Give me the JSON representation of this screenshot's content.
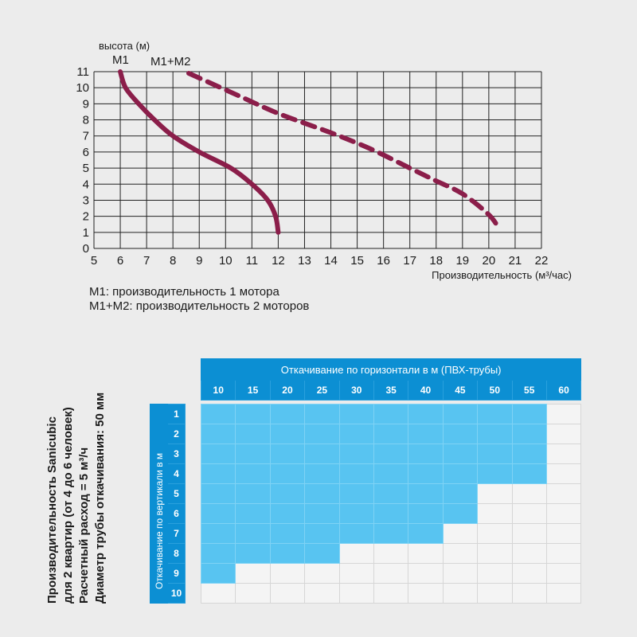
{
  "chart_data": {
    "type": "line",
    "ylabel": "высота (м)",
    "xlabel": "Производительность (м³/час)",
    "xlim": [
      5,
      22
    ],
    "ylim": [
      0,
      11
    ],
    "xticks": [
      "5",
      "6",
      "7",
      "8",
      "9",
      "10",
      "11",
      "12",
      "13",
      "14",
      "15",
      "16",
      "17",
      "18",
      "19",
      "20",
      "21",
      "22"
    ],
    "yticks": [
      "0",
      "1",
      "2",
      "3",
      "4",
      "5",
      "6",
      "7",
      "8",
      "9",
      "10",
      "11"
    ],
    "grid": true,
    "series": [
      {
        "name": "M1",
        "style": "solid",
        "color": "#8b1e4a",
        "points": [
          [
            6.0,
            11
          ],
          [
            6.2,
            10
          ],
          [
            6.7,
            9
          ],
          [
            7.3,
            8
          ],
          [
            8.0,
            7
          ],
          [
            9.0,
            6
          ],
          [
            10.2,
            5
          ],
          [
            11.0,
            4
          ],
          [
            11.6,
            3
          ],
          [
            11.9,
            2
          ],
          [
            12.0,
            1
          ]
        ]
      },
      {
        "name": "M1+M2",
        "style": "dashed",
        "color": "#8b1e4a",
        "points": [
          [
            8.6,
            10.9
          ],
          [
            10.5,
            9.5
          ],
          [
            12.0,
            8.4
          ],
          [
            14.0,
            7.2
          ],
          [
            15.5,
            6.2
          ],
          [
            17.0,
            5.0
          ],
          [
            18.0,
            4.2
          ],
          [
            19.0,
            3.4
          ],
          [
            20.0,
            2.1
          ],
          [
            20.4,
            1.2
          ]
        ]
      }
    ]
  },
  "legend": {
    "m1": "M1: производительность 1 мотора",
    "m12": "M1+M2: производительность 2 моторов"
  },
  "side_text": {
    "line1": "Производительность Sanicubic",
    "line2": "для 2 квартир (от 4 до 6 человек)",
    "line3": "Расчетный расход = 5 м³/ч",
    "line4": "Диаметр трубы откачивания: 50 мм"
  },
  "table": {
    "header": "Откачивание по горизонтали в м (ПВХ-трубы)",
    "vertical_header": "Откачивание по вертикали в м",
    "columns": [
      "10",
      "15",
      "20",
      "25",
      "30",
      "35",
      "40",
      "45",
      "50",
      "55",
      "60"
    ],
    "rows": [
      "1",
      "2",
      "3",
      "4",
      "5",
      "6",
      "7",
      "8",
      "9",
      "10"
    ],
    "allowed_columns_per_row": [
      10,
      10,
      10,
      10,
      8,
      8,
      7,
      4,
      1,
      0
    ]
  }
}
